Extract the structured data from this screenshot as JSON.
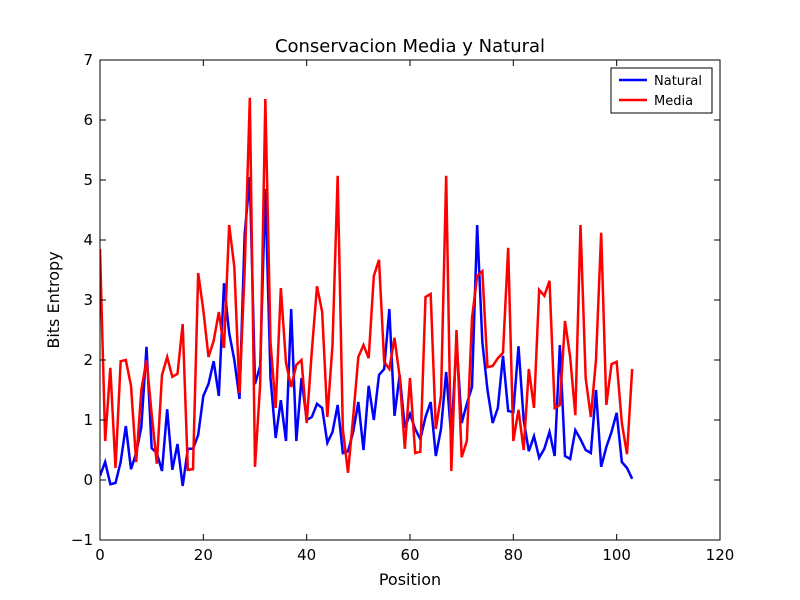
{
  "chart_data": {
    "type": "line",
    "title": "Conservacion Media y Natural",
    "xlabel": "Position",
    "ylabel": "Bits Entropy",
    "xlim": [
      0,
      120
    ],
    "ylim": [
      -1,
      7
    ],
    "xticks": [
      0,
      20,
      40,
      60,
      80,
      100,
      120
    ],
    "yticks": [
      -1,
      0,
      1,
      2,
      3,
      4,
      5,
      6,
      7
    ],
    "xtick_labels": [
      "0",
      "20",
      "40",
      "60",
      "80",
      "100",
      "120"
    ],
    "ytick_labels": [
      "−1",
      "0",
      "1",
      "2",
      "3",
      "4",
      "5",
      "6",
      "7"
    ],
    "grid": false,
    "legend_position": "top-right",
    "series": [
      {
        "name": "Natural",
        "color": "#0000ff",
        "x": [
          0,
          1,
          2,
          3,
          4,
          5,
          6,
          7,
          8,
          9,
          10,
          11,
          12,
          13,
          14,
          15,
          16,
          17,
          18,
          19,
          20,
          21,
          22,
          23,
          24,
          25,
          26,
          27,
          28,
          29,
          30,
          31,
          32,
          33,
          34,
          35,
          36,
          37,
          38,
          39,
          40,
          41,
          42,
          43,
          44,
          45,
          46,
          47,
          48,
          49,
          50,
          51,
          52,
          53,
          54,
          55,
          56,
          57,
          58,
          59,
          60,
          61,
          62,
          63,
          64,
          65,
          66,
          67,
          68,
          69,
          70,
          71,
          72,
          73,
          74,
          75,
          76,
          77,
          78,
          79,
          80,
          81,
          82,
          83,
          84,
          85,
          86,
          87,
          88,
          89,
          90,
          91,
          92,
          93,
          94,
          95,
          96,
          97,
          98,
          99,
          100,
          101,
          102,
          103
        ],
        "values": [
          0.07,
          0.3,
          -0.07,
          -0.05,
          0.3,
          0.9,
          0.18,
          0.45,
          0.88,
          2.22,
          0.53,
          0.45,
          0.15,
          1.18,
          0.17,
          0.6,
          -0.1,
          0.52,
          0.52,
          0.75,
          1.4,
          1.6,
          1.98,
          1.4,
          3.28,
          2.45,
          2.0,
          1.35,
          4.1,
          5.05,
          1.6,
          1.9,
          4.85,
          1.7,
          0.7,
          1.33,
          0.65,
          2.85,
          0.65,
          1.7,
          1.0,
          1.05,
          1.27,
          1.2,
          0.62,
          0.8,
          1.25,
          0.45,
          0.48,
          0.8,
          1.3,
          0.5,
          1.57,
          1.0,
          1.75,
          1.85,
          2.85,
          1.07,
          1.75,
          0.87,
          1.1,
          0.85,
          0.68,
          1.05,
          1.3,
          0.4,
          0.85,
          1.8,
          0.7,
          2.32,
          0.95,
          1.27,
          1.55,
          4.25,
          2.3,
          1.5,
          0.95,
          1.2,
          2.07,
          1.15,
          1.13,
          2.23,
          1.0,
          0.48,
          0.73,
          0.37,
          0.52,
          0.8,
          0.4,
          2.25,
          0.4,
          0.35,
          0.83,
          0.68,
          0.5,
          0.45,
          1.5,
          0.22,
          0.55,
          0.8,
          1.12,
          0.3,
          0.2,
          0.02
        ]
      },
      {
        "name": "Media",
        "color": "#ff0000",
        "x": [
          0,
          1,
          2,
          3,
          4,
          5,
          6,
          7,
          8,
          9,
          10,
          11,
          12,
          13,
          14,
          15,
          16,
          17,
          18,
          19,
          20,
          21,
          22,
          23,
          24,
          25,
          26,
          27,
          28,
          29,
          30,
          31,
          32,
          33,
          34,
          35,
          36,
          37,
          38,
          39,
          40,
          41,
          42,
          43,
          44,
          45,
          46,
          47,
          48,
          49,
          50,
          51,
          52,
          53,
          54,
          55,
          56,
          57,
          58,
          59,
          60,
          61,
          62,
          63,
          64,
          65,
          66,
          67,
          68,
          69,
          70,
          71,
          72,
          73,
          74,
          75,
          76,
          77,
          78,
          79,
          80,
          81,
          82,
          83,
          84,
          85,
          86,
          87,
          88,
          89,
          90,
          91,
          92,
          93,
          94,
          95,
          96,
          97,
          98,
          99,
          100,
          101,
          102,
          103
        ],
        "values": [
          3.85,
          0.65,
          1.87,
          0.2,
          1.98,
          2.0,
          1.57,
          0.3,
          1.5,
          2.0,
          1.1,
          0.27,
          1.75,
          2.05,
          1.72,
          1.77,
          2.6,
          0.17,
          0.18,
          3.45,
          2.83,
          2.05,
          2.32,
          2.8,
          2.2,
          4.25,
          3.55,
          1.45,
          3.5,
          6.37,
          0.22,
          1.6,
          6.35,
          2.3,
          1.2,
          3.2,
          1.95,
          1.55,
          1.92,
          2.0,
          0.95,
          2.15,
          3.23,
          2.8,
          1.05,
          2.25,
          5.07,
          0.85,
          0.12,
          1.05,
          2.05,
          2.25,
          2.03,
          3.4,
          3.67,
          1.97,
          1.85,
          2.37,
          1.72,
          0.52,
          1.7,
          0.45,
          0.47,
          3.05,
          3.1,
          0.85,
          1.4,
          5.07,
          0.15,
          2.5,
          0.38,
          0.65,
          2.7,
          3.4,
          3.48,
          1.88,
          1.9,
          2.03,
          2.12,
          3.87,
          0.65,
          1.17,
          0.5,
          1.85,
          1.2,
          3.17,
          3.07,
          3.32,
          1.2,
          1.25,
          2.65,
          2.05,
          1.08,
          4.25,
          1.7,
          1.05,
          2.0,
          4.12,
          1.25,
          1.93,
          1.97,
          0.95,
          0.43,
          1.85
        ]
      }
    ]
  }
}
